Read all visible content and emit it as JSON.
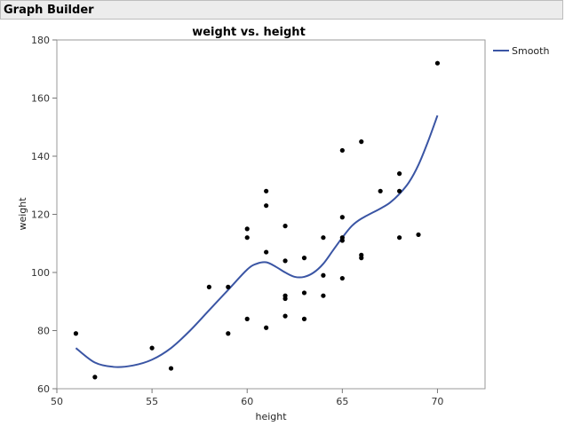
{
  "window": {
    "title": "Graph Builder"
  },
  "chart_data": {
    "type": "scatter",
    "title": "weight vs. height",
    "xlabel": "height",
    "ylabel": "weight",
    "xlim": [
      50,
      72.5
    ],
    "ylim": [
      60,
      180
    ],
    "xticks": [
      50,
      55,
      60,
      65,
      70
    ],
    "yticks": [
      60,
      80,
      100,
      120,
      140,
      160,
      180
    ],
    "grid": false,
    "legend": {
      "position": "right",
      "entries": [
        "Smooth"
      ]
    },
    "series": [
      {
        "type": "scatter",
        "points": [
          [
            51,
            79
          ],
          [
            52,
            64
          ],
          [
            55,
            74
          ],
          [
            56,
            67
          ],
          [
            58,
            95
          ],
          [
            59,
            95
          ],
          [
            59,
            79
          ],
          [
            60,
            115
          ],
          [
            60,
            112
          ],
          [
            60,
            84
          ],
          [
            61,
            128
          ],
          [
            61,
            123
          ],
          [
            61,
            107
          ],
          [
            61,
            81
          ],
          [
            62,
            116
          ],
          [
            62,
            104
          ],
          [
            62,
            92
          ],
          [
            62,
            91
          ],
          [
            62,
            85
          ],
          [
            63,
            105
          ],
          [
            63,
            93
          ],
          [
            63,
            84
          ],
          [
            64,
            112
          ],
          [
            64,
            99
          ],
          [
            64,
            92
          ],
          [
            65,
            142
          ],
          [
            65,
            119
          ],
          [
            65,
            112
          ],
          [
            65,
            111
          ],
          [
            65,
            98
          ],
          [
            66,
            145
          ],
          [
            66,
            106
          ],
          [
            66,
            105
          ],
          [
            67,
            128
          ],
          [
            68,
            134
          ],
          [
            68,
            128
          ],
          [
            68,
            112
          ],
          [
            69,
            113
          ],
          [
            70,
            172
          ]
        ]
      },
      {
        "name": "Smooth",
        "type": "line",
        "color": "#3a55a4",
        "points": [
          [
            51,
            74
          ],
          [
            52,
            69
          ],
          [
            53,
            67.5
          ],
          [
            54,
            68
          ],
          [
            55,
            70
          ],
          [
            56,
            74
          ],
          [
            57,
            80
          ],
          [
            58,
            87
          ],
          [
            59,
            94
          ],
          [
            60,
            101
          ],
          [
            60.5,
            103
          ],
          [
            61,
            103.5
          ],
          [
            61.5,
            102
          ],
          [
            62,
            100
          ],
          [
            62.5,
            98.5
          ],
          [
            63,
            98.5
          ],
          [
            63.5,
            100
          ],
          [
            64,
            103
          ],
          [
            64.5,
            107.5
          ],
          [
            65,
            112
          ],
          [
            65.5,
            116
          ],
          [
            66,
            118.5
          ],
          [
            67,
            122
          ],
          [
            67.5,
            124
          ],
          [
            68,
            127
          ],
          [
            68.5,
            131
          ],
          [
            69,
            137
          ],
          [
            69.5,
            145
          ],
          [
            70,
            154
          ]
        ]
      }
    ]
  }
}
